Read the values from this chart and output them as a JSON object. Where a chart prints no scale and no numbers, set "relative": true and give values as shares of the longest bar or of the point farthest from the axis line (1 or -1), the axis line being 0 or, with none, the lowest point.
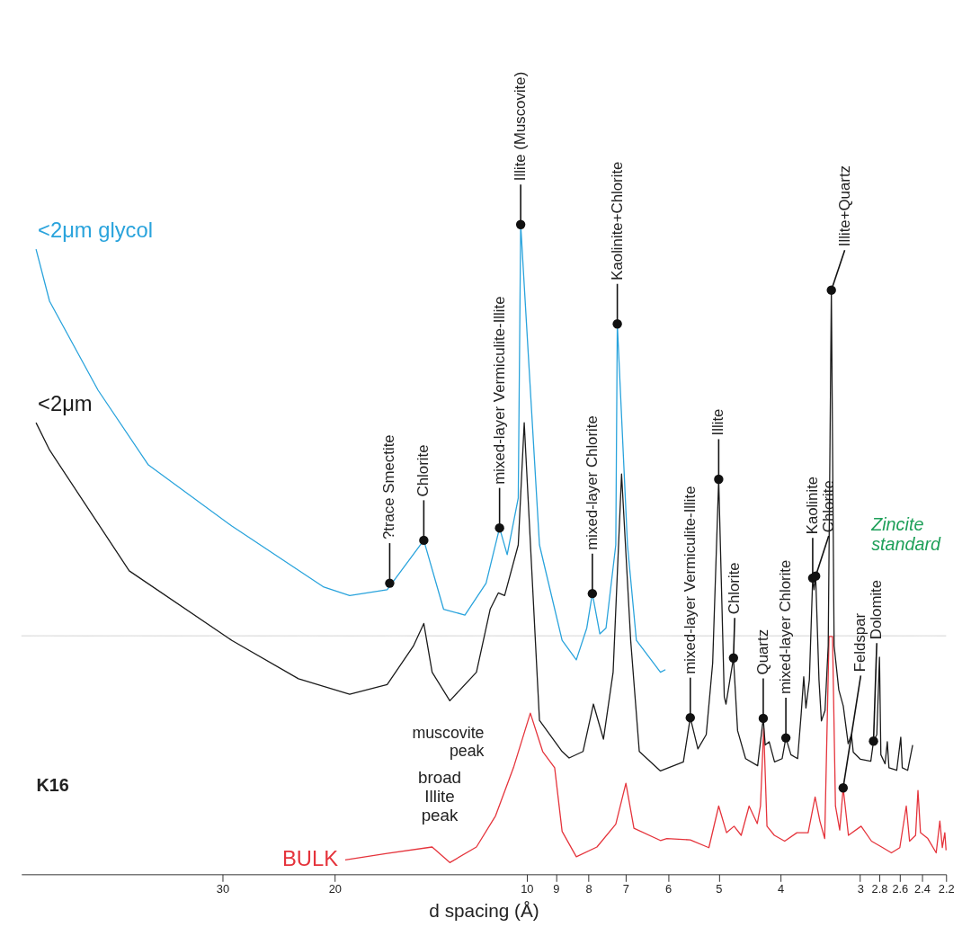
{
  "chart_data": {
    "type": "line",
    "relative": true,
    "xlabel": "d spacing (Å)",
    "xlim": [
      62,
      2.2
    ],
    "xticks": [
      30,
      20,
      10,
      9,
      8,
      7,
      6,
      5,
      4,
      3,
      2.8,
      2.6,
      2.4,
      2.2
    ],
    "grid": false,
    "marker": "none",
    "line_style": "solid",
    "log": "x",
    "ref_lines": [
      {
        "axis": "y",
        "value": 0.367,
        "color": "#cfcfcf"
      }
    ],
    "series": [
      {
        "name": "<2μm glycol",
        "color": "#29a3dc",
        "x": [
          58.8,
          56.0,
          47.0,
          39.2,
          29.0,
          20.8,
          18.95,
          16.55,
          14.5,
          13.5,
          12.5,
          11.58,
          11.03,
          10.73,
          10.31,
          10.22,
          9.55,
          8.8,
          8.36,
          8.05,
          7.89,
          7.68,
          7.51,
          7.25,
          7.21,
          6.95,
          6.73,
          6.17,
          6.06
        ],
        "values": [
          0.962,
          0.882,
          0.745,
          0.63,
          0.536,
          0.442,
          0.429,
          0.438,
          0.514,
          0.408,
          0.399,
          0.448,
          0.533,
          0.492,
          0.579,
          1.0,
          0.507,
          0.36,
          0.33,
          0.379,
          0.432,
          0.37,
          0.379,
          0.507,
          0.847,
          0.507,
          0.36,
          0.311,
          0.315
        ]
      },
      {
        "name": "<2μm",
        "color": "#1a1a1a",
        "x": [
          58.8,
          56.0,
          42.0,
          29.0,
          22.8,
          18.95,
          16.55,
          15.06,
          14.5,
          14.07,
          13.2,
          11.99,
          11.41,
          11.08,
          10.83,
          10.31,
          10.09,
          9.55,
          8.8,
          8.58,
          8.16,
          7.86,
          7.58,
          7.32,
          7.1,
          6.87,
          6.66,
          6.17,
          5.68,
          5.54,
          5.39,
          5.23,
          5.11,
          5.0,
          4.9,
          4.87,
          4.74,
          4.67,
          4.537,
          4.344,
          4.257,
          4.227,
          4.167,
          4.087,
          3.976,
          3.923,
          3.852,
          3.76,
          3.712,
          3.678,
          3.649,
          3.604,
          3.561,
          3.544,
          3.523,
          3.481,
          3.451,
          3.406,
          3.367,
          3.329,
          3.296,
          3.241,
          3.189,
          3.133,
          3.096,
          3.076,
          2.997,
          2.887,
          2.859,
          2.825,
          2.798,
          2.784,
          2.742,
          2.72,
          2.704,
          2.629,
          2.591,
          2.577,
          2.527,
          2.482
        ],
        "values": [
          0.695,
          0.653,
          0.467,
          0.36,
          0.301,
          0.277,
          0.292,
          0.351,
          0.386,
          0.311,
          0.267,
          0.311,
          0.408,
          0.433,
          0.429,
          0.507,
          0.695,
          0.237,
          0.189,
          0.179,
          0.189,
          0.262,
          0.208,
          0.311,
          0.616,
          0.36,
          0.189,
          0.159,
          0.173,
          0.241,
          0.193,
          0.215,
          0.325,
          0.608,
          0.273,
          0.262,
          0.333,
          0.221,
          0.178,
          0.167,
          0.24,
          0.199,
          0.204,
          0.173,
          0.178,
          0.21,
          0.184,
          0.178,
          0.247,
          0.304,
          0.256,
          0.299,
          0.456,
          0.438,
          0.459,
          0.299,
          0.236,
          0.252,
          0.352,
          0.899,
          0.352,
          0.284,
          0.259,
          0.201,
          0.215,
          0.188,
          0.177,
          0.174,
          0.205,
          0.215,
          0.334,
          0.184,
          0.17,
          0.204,
          0.164,
          0.16,
          0.211,
          0.164,
          0.16,
          0.199
        ]
      },
      {
        "name": "BULK",
        "color": "#e5333b",
        "x": [
          19.26,
          16.55,
          14.07,
          13.2,
          11.99,
          11.19,
          10.49,
          9.87,
          9.44,
          9.04,
          8.8,
          8.36,
          7.76,
          7.25,
          6.99,
          6.79,
          6.17,
          6.03,
          5.54,
          5.18,
          5.0,
          4.86,
          4.73,
          4.61,
          4.48,
          4.35,
          4.3,
          4.25,
          4.2,
          4.09,
          3.94,
          3.77,
          3.62,
          3.53,
          3.47,
          3.41,
          3.357,
          3.315,
          3.28,
          3.23,
          3.19,
          3.13,
          2.99,
          2.88,
          2.765,
          2.68,
          2.6,
          2.54,
          2.51,
          2.456,
          2.435,
          2.413,
          2.35,
          2.28,
          2.25,
          2.23,
          2.21,
          2.2
        ],
        "values": [
          0.022,
          0.032,
          0.042,
          0.018,
          0.042,
          0.09,
          0.164,
          0.248,
          0.189,
          0.164,
          0.066,
          0.027,
          0.042,
          0.077,
          0.14,
          0.071,
          0.052,
          0.055,
          0.053,
          0.041,
          0.105,
          0.064,
          0.074,
          0.06,
          0.105,
          0.078,
          0.105,
          0.225,
          0.074,
          0.06,
          0.051,
          0.064,
          0.064,
          0.119,
          0.082,
          0.055,
          0.366,
          0.366,
          0.105,
          0.068,
          0.133,
          0.06,
          0.074,
          0.051,
          0.041,
          0.033,
          0.041,
          0.105,
          0.051,
          0.06,
          0.129,
          0.064,
          0.055,
          0.033,
          0.082,
          0.041,
          0.064,
          0.037
        ]
      }
    ],
    "annotations": [
      {
        "text": "?trace Smectite",
        "x": 16.4,
        "y": 0.448
      },
      {
        "text": "Chlorite",
        "x": 14.5,
        "y": 0.514
      },
      {
        "text": "mixed-layer Vermiculite-Illite",
        "x": 11.03,
        "y": 0.533
      },
      {
        "text": "Illite (Muscovite)",
        "x": 10.22,
        "y": 1.0
      },
      {
        "text": "mixed-layer Chlorite",
        "x": 7.89,
        "y": 0.432
      },
      {
        "text": "Kaolinite+Chlorite",
        "x": 7.21,
        "y": 0.847
      },
      {
        "text": "mixed-layer Vermiculite-Illite",
        "x": 5.54,
        "y": 0.241
      },
      {
        "text": "Illite",
        "x": 5.0,
        "y": 0.608
      },
      {
        "text": "Chlorite",
        "x": 4.74,
        "y": 0.333
      },
      {
        "text": "Quartz",
        "x": 4.257,
        "y": 0.24
      },
      {
        "text": "mixed-layer Chlorite",
        "x": 3.923,
        "y": 0.21
      },
      {
        "text": "Kaolinite",
        "x": 3.561,
        "y": 0.456
      },
      {
        "text": "Chlorite",
        "x": 3.523,
        "y": 0.459
      },
      {
        "text": "Illite+Quartz",
        "x": 3.329,
        "y": 0.899
      },
      {
        "text": "Feldspar",
        "x": 3.19,
        "y": 0.133
      },
      {
        "text": "Dolomite",
        "x": 2.859,
        "y": 0.205
      },
      "K16",
      "muscovite peak",
      "broad Illite peak",
      "Zincite standard"
    ]
  }
}
